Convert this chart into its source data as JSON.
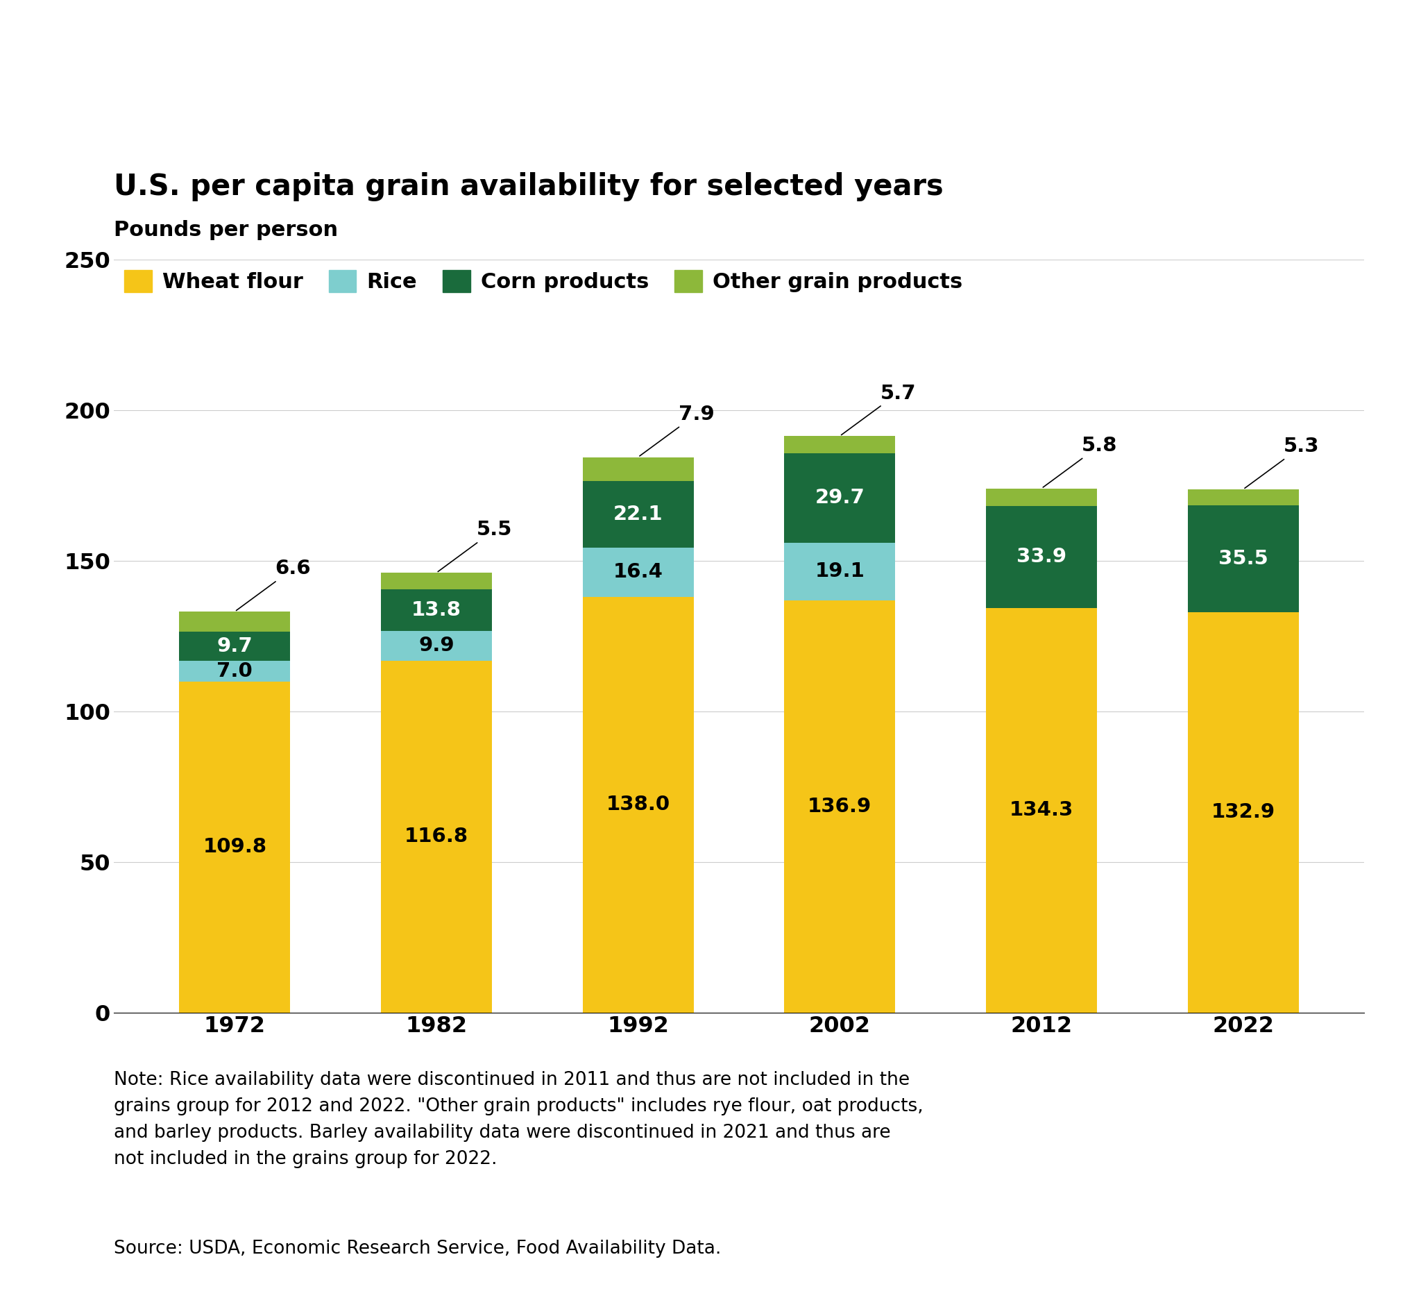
{
  "title": "U.S. per capita grain availability for selected years",
  "ylabel": "Pounds per person",
  "years": [
    "1972",
    "1982",
    "1992",
    "2002",
    "2012",
    "2022"
  ],
  "wheat_flour": [
    109.8,
    116.8,
    138.0,
    136.9,
    134.3,
    132.9
  ],
  "rice": [
    7.0,
    9.9,
    16.4,
    19.1,
    0,
    0
  ],
  "corn_products": [
    9.7,
    13.8,
    22.1,
    29.7,
    33.9,
    35.5
  ],
  "other_grain": [
    6.6,
    5.5,
    7.9,
    5.7,
    5.8,
    5.3
  ],
  "wheat_color": "#F5C518",
  "rice_color": "#7ECECE",
  "corn_color": "#1A6B3C",
  "other_color": "#8DB83A",
  "ylim": [
    0,
    250
  ],
  "yticks": [
    0,
    50,
    100,
    150,
    200,
    250
  ],
  "note_line1": "Note: Rice availability data were discontinued in 2011 and thus are not included in the",
  "note_line2": "grains group for 2012 and 2022. \"Other grain products\" includes rye flour, oat products,",
  "note_line3": "and barley products. Barley availability data were discontinued in 2021 and thus are",
  "note_line4": "not included in the grains group for 2022.",
  "source": "Source: USDA, Economic Research Service, Food Availability Data.",
  "legend_labels": [
    "Wheat flour",
    "Rice",
    "Corn products",
    "Other grain products"
  ],
  "background_color": "#FFFFFF",
  "bar_width": 0.55,
  "title_fontsize": 30,
  "tick_fontsize": 23,
  "legend_fontsize": 22,
  "annotation_fontsize": 21,
  "note_fontsize": 19,
  "ylabel_fontsize": 22
}
